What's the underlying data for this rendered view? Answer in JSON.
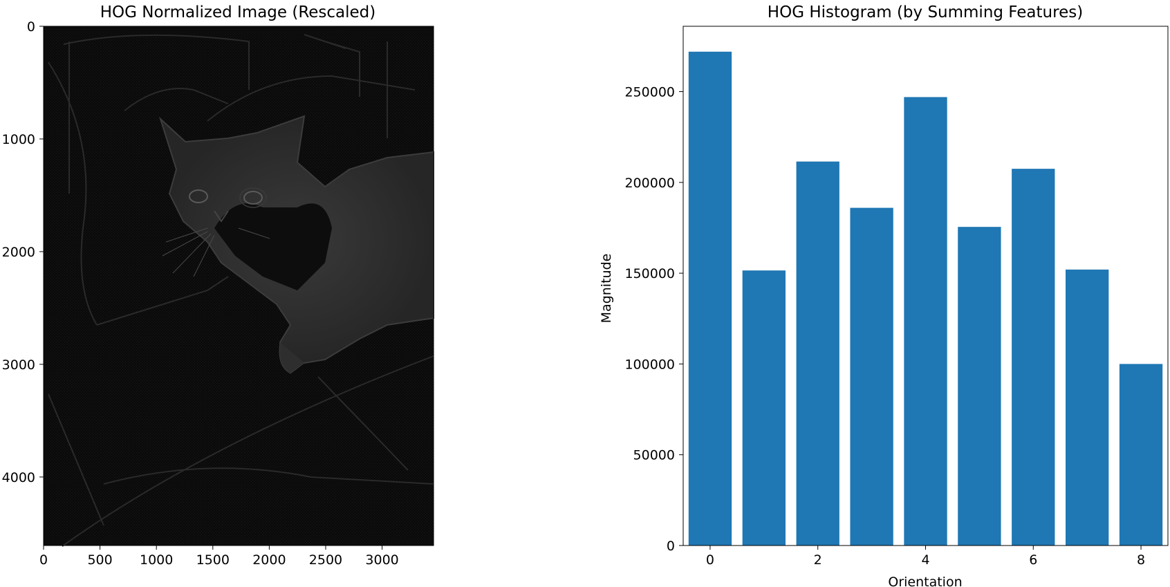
{
  "image_panel": {
    "title": "HOG Normalized Image (Rescaled)",
    "x_ticks": [
      0,
      500,
      1000,
      1500,
      2000,
      2500,
      3000
    ],
    "y_ticks": [
      0,
      1000,
      2000,
      3000,
      4000
    ],
    "x_range": [
      0,
      3456
    ],
    "y_range": [
      0,
      4608
    ]
  },
  "chart_data": {
    "type": "bar",
    "title": "HOG Histogram (by Summing Features)",
    "xlabel": "Orientation",
    "ylabel": "Magnitude",
    "categories": [
      0,
      1,
      2,
      3,
      4,
      5,
      6,
      7,
      8
    ],
    "values": [
      272000,
      151500,
      211500,
      186000,
      247000,
      175500,
      207500,
      152000,
      100000
    ],
    "x_ticks": [
      0,
      2,
      4,
      6,
      8
    ],
    "y_ticks": [
      0,
      50000,
      100000,
      150000,
      200000,
      250000
    ],
    "xlim": [
      -0.5,
      8.5
    ],
    "ylim": [
      0,
      286000
    ],
    "bar_color": "#1f77b4",
    "grid": false
  }
}
